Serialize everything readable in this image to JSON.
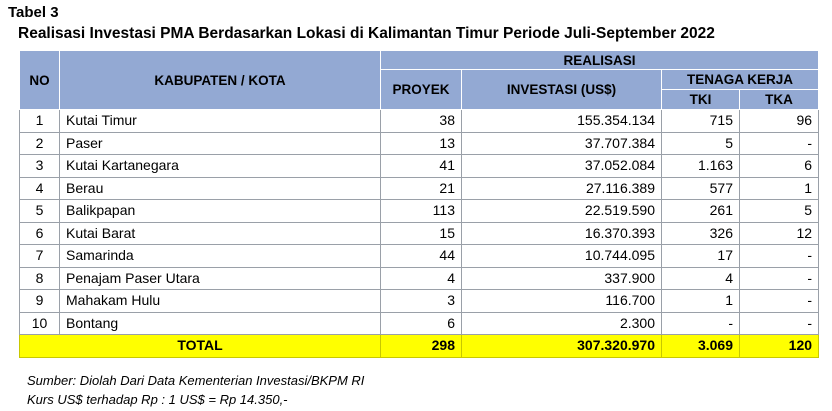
{
  "table_label": "Tabel 3",
  "title": "Realisasi Investasi PMA Berdasarkan Lokasi di Kalimantan Timur Periode Juli-September  2022",
  "headers": {
    "no": "NO",
    "region": "KABUPATEN / KOTA",
    "realisasi": "REALISASI",
    "proyek": "PROYEK",
    "investasi": "INVESTASI (US$)",
    "tenaga_kerja": "TENAGA KERJA",
    "tki": "TKI",
    "tka": "TKA"
  },
  "rows": [
    {
      "no": "1",
      "region": "Kutai Timur",
      "proyek": "38",
      "investasi": "155.354.134",
      "tki": "715",
      "tka": "96"
    },
    {
      "no": "2",
      "region": "Paser",
      "proyek": "13",
      "investasi": "37.707.384",
      "tki": "5",
      "tka": "-"
    },
    {
      "no": "3",
      "region": "Kutai Kartanegara",
      "proyek": "41",
      "investasi": "37.052.084",
      "tki": "1.163",
      "tka": "6"
    },
    {
      "no": "4",
      "region": "Berau",
      "proyek": "21",
      "investasi": "27.116.389",
      "tki": "577",
      "tka": "1"
    },
    {
      "no": "5",
      "region": "Balikpapan",
      "proyek": "113",
      "investasi": "22.519.590",
      "tki": "261",
      "tka": "5"
    },
    {
      "no": "6",
      "region": "Kutai Barat",
      "proyek": "15",
      "investasi": "16.370.393",
      "tki": "326",
      "tka": "12"
    },
    {
      "no": "7",
      "region": "Samarinda",
      "proyek": "44",
      "investasi": "10.744.095",
      "tki": "17",
      "tka": "-"
    },
    {
      "no": "8",
      "region": "Penajam Paser Utara",
      "proyek": "4",
      "investasi": "337.900",
      "tki": "4",
      "tka": "-"
    },
    {
      "no": "9",
      "region": "Mahakam Hulu",
      "proyek": "3",
      "investasi": "116.700",
      "tki": "1",
      "tka": "-"
    },
    {
      "no": "10",
      "region": "Bontang",
      "proyek": "6",
      "investasi": "2.300",
      "tki": "-",
      "tka": "-"
    }
  ],
  "total": {
    "label": "TOTAL",
    "proyek": "298",
    "investasi": "307.320.970",
    "tki": "3.069",
    "tka": "120"
  },
  "notes": {
    "source": "Sumber: Diolah Dari Data Kementerian Investasi/BKPM RI",
    "rate": "Kurs US$ terhadap Rp : 1 US$ = Rp 14.350,-"
  }
}
